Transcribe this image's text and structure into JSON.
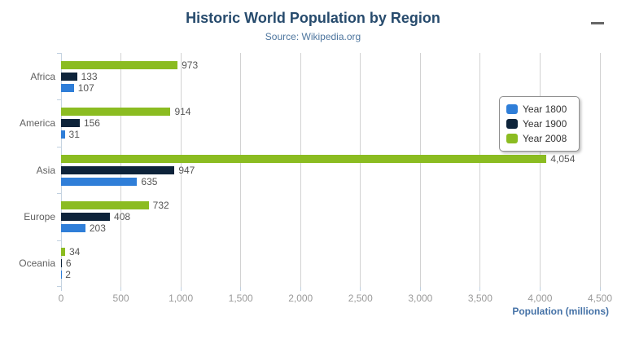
{
  "header": {
    "title": "Historic World Population by Region",
    "subtitle": "Source: Wikipedia.org"
  },
  "menu": {
    "icon": "hamburger-menu-icon",
    "tooltip_label": "Chart context menu"
  },
  "colors": {
    "title": "#274b6d",
    "subtitle": "#4d759e",
    "axis_title": "#4572a7",
    "grid_line": "#d2d2d2",
    "axis_line": "#c6d4e1",
    "tick": "#c0d0e0",
    "category_label": "#606060",
    "x_tick_label": "#9a9a9a",
    "data_label": "#565656",
    "legend_border": "#8f8f8f",
    "menu_icon": "#666666"
  },
  "chart_data": {
    "type": "bar",
    "orientation": "horizontal",
    "title": "Historic World Population by Region",
    "subtitle": "Source: Wikipedia.org",
    "xlabel": "Population (millions)",
    "ylabel": "",
    "categories": [
      "Africa",
      "America",
      "Asia",
      "Europe",
      "Oceania"
    ],
    "series": [
      {
        "name": "Year 1800",
        "color": "#2f7ed8",
        "values": [
          107,
          31,
          635,
          203,
          2
        ]
      },
      {
        "name": "Year 1900",
        "color": "#0d233a",
        "values": [
          133,
          156,
          947,
          408,
          6
        ]
      },
      {
        "name": "Year 2008",
        "color": "#8bbc21",
        "values": [
          973,
          914,
          4054,
          732,
          34
        ]
      }
    ],
    "bar_order_top_to_bottom": [
      "Year 2008",
      "Year 1900",
      "Year 1800"
    ],
    "data_labels": true,
    "xlim": [
      0,
      4500
    ],
    "x_ticks": [
      0,
      500,
      1000,
      1500,
      2000,
      2500,
      3000,
      3500,
      4000,
      4500
    ],
    "x_tick_labels": [
      "0",
      "500",
      "1,000",
      "1,500",
      "2,000",
      "2,500",
      "3,000",
      "3,500",
      "4,000",
      "4,500"
    ],
    "grid": true,
    "legend_position": "right-inside"
  }
}
